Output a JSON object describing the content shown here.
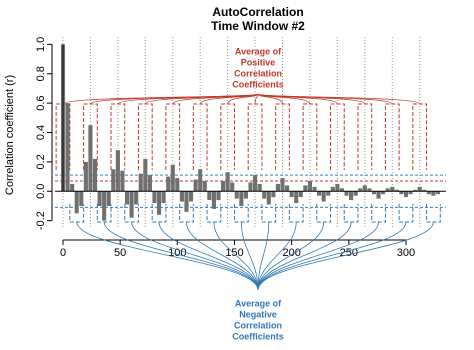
{
  "chart_data": {
    "type": "bar",
    "title": "AutoCorrelation",
    "subtitle": "Time Window #2",
    "y_label": "Correlation coefficient (r)",
    "x": [
      0,
      4,
      8,
      12,
      16,
      20,
      24,
      28,
      32,
      36,
      40,
      44,
      48,
      52,
      56,
      60,
      64,
      68,
      72,
      76,
      80,
      84,
      88,
      92,
      96,
      100,
      104,
      108,
      112,
      116,
      120,
      124,
      128,
      132,
      136,
      140,
      144,
      148,
      152,
      156,
      160,
      164,
      168,
      172,
      176,
      180,
      184,
      188,
      192,
      196,
      200,
      204,
      208,
      212,
      216,
      220,
      224,
      228,
      232,
      236,
      240,
      244,
      248,
      252,
      256,
      260,
      264,
      268,
      272,
      276,
      280,
      284,
      288,
      292,
      296,
      300,
      304,
      308,
      312,
      316,
      320,
      324,
      328
    ],
    "values": [
      1.0,
      0.6,
      0.05,
      -0.15,
      -0.1,
      0.2,
      0.45,
      0.22,
      -0.1,
      -0.2,
      -0.1,
      0.15,
      0.28,
      0.14,
      -0.09,
      -0.18,
      -0.09,
      0.12,
      0.22,
      0.11,
      -0.08,
      -0.16,
      -0.08,
      0.1,
      0.18,
      0.09,
      -0.07,
      -0.14,
      -0.07,
      0.08,
      0.15,
      0.07,
      -0.06,
      -0.12,
      -0.06,
      0.07,
      0.13,
      0.06,
      -0.05,
      -0.1,
      -0.05,
      0.06,
      0.11,
      0.05,
      -0.05,
      -0.09,
      -0.04,
      0.05,
      0.09,
      0.04,
      -0.04,
      -0.08,
      -0.04,
      0.04,
      0.07,
      0.03,
      -0.03,
      -0.07,
      -0.03,
      0.03,
      0.05,
      0.02,
      -0.03,
      -0.06,
      -0.03,
      0.02,
      0.04,
      0.02,
      -0.02,
      -0.05,
      -0.02,
      0.02,
      0.03,
      0.01,
      -0.02,
      -0.04,
      -0.02,
      0.01,
      0.03,
      0.01,
      -0.02,
      -0.03,
      -0.02
    ],
    "color": "#707070",
    "xlim": [
      -7,
      335
    ],
    "ylim": [
      -0.25,
      1.05
    ],
    "xticks": [
      0,
      50,
      100,
      150,
      200,
      250,
      300
    ],
    "yticks": [
      {
        "value": -0.2,
        "label": "-0.2"
      },
      {
        "value": 0,
        "label": "0.0"
      },
      0.2,
      0.4,
      0.6,
      0.8,
      {
        "value": 1,
        "label": "1.0"
      }
    ],
    "period_lines": [
      0,
      24,
      48,
      72,
      96,
      120,
      144,
      168,
      192,
      216,
      240,
      264,
      288,
      312
    ],
    "reference_lines": [
      {
        "value": 0.11,
        "color": "#3a7dc9"
      },
      {
        "value": -0.11,
        "color": "#3a7dc9"
      },
      {
        "value": 0.07,
        "color": "#c0392b"
      }
    ],
    "annotations": [
      {
        "lines": [
          "Average of",
          "Positive",
          "Correlation",
          "Coefficients"
        ],
        "color": "#c0392b"
      },
      {
        "lines": [
          "Average of",
          "Negative",
          "Correlation",
          "Coefficients"
        ],
        "color": "#2f78b5"
      }
    ]
  }
}
